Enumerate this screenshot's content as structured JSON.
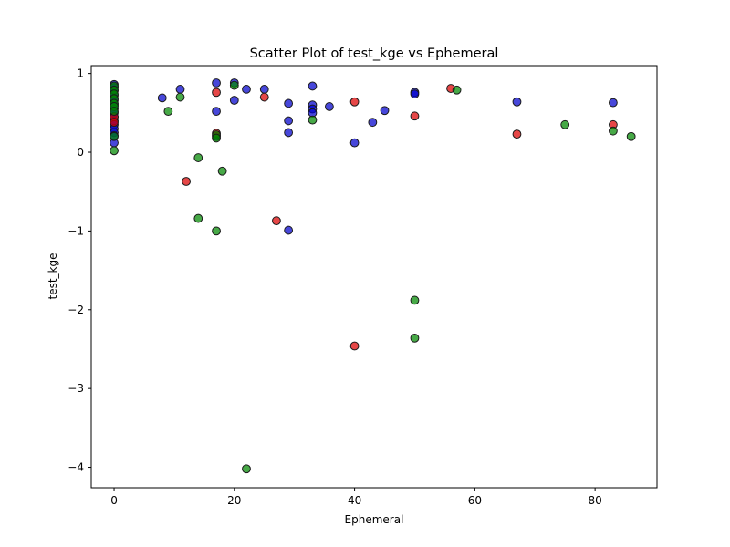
{
  "chart_data": {
    "type": "scatter",
    "title": "Scatter Plot of test_kge vs Ephemeral",
    "xlabel": "Ephemeral",
    "ylabel": "test_kge",
    "xlim": [
      -3.8,
      90.3
    ],
    "ylim": [
      -4.26,
      1.1
    ],
    "xticks": [
      0,
      20,
      40,
      60,
      80
    ],
    "yticks": [
      1,
      0,
      -1,
      -2,
      -3,
      -4
    ],
    "grid": false,
    "series": [
      {
        "color": "#0000cc",
        "points": [
          [
            0,
            0.86
          ],
          [
            0,
            0.82
          ],
          [
            0,
            0.78
          ],
          [
            0,
            0.72
          ],
          [
            0,
            0.66
          ],
          [
            0,
            0.6
          ],
          [
            0,
            0.55
          ],
          [
            0,
            0.5
          ],
          [
            0,
            0.45
          ],
          [
            0,
            0.4
          ],
          [
            0,
            0.35
          ],
          [
            0,
            0.3
          ],
          [
            0,
            0.25
          ],
          [
            0,
            0.21
          ],
          [
            0,
            0.12
          ],
          [
            8,
            0.69
          ],
          [
            11,
            0.8
          ],
          [
            17,
            0.88
          ],
          [
            17,
            0.52
          ],
          [
            17,
            0.2
          ],
          [
            20,
            0.88
          ],
          [
            20,
            0.66
          ],
          [
            22,
            0.8
          ],
          [
            25,
            0.8
          ],
          [
            29,
            0.62
          ],
          [
            29,
            0.4
          ],
          [
            29,
            0.25
          ],
          [
            29,
            -0.99
          ],
          [
            33,
            0.84
          ],
          [
            33,
            0.6
          ],
          [
            33,
            0.55
          ],
          [
            33,
            0.5
          ],
          [
            35.8,
            0.58
          ],
          [
            40,
            0.12
          ],
          [
            43,
            0.38
          ],
          [
            45,
            0.53
          ],
          [
            50,
            0.76
          ],
          [
            50,
            0.74
          ],
          [
            67,
            0.64
          ],
          [
            83,
            0.63
          ]
        ]
      },
      {
        "color": "#dd0000",
        "points": [
          [
            0,
            0.45
          ],
          [
            0,
            0.38
          ],
          [
            12,
            -0.37
          ],
          [
            17,
            0.76
          ],
          [
            17,
            0.24
          ],
          [
            25,
            0.7
          ],
          [
            27,
            -0.87
          ],
          [
            40,
            0.64
          ],
          [
            40,
            -2.46
          ],
          [
            50,
            0.46
          ],
          [
            56,
            0.81
          ],
          [
            67,
            0.23
          ],
          [
            83,
            0.35
          ]
        ]
      },
      {
        "color": "#008800",
        "points": [
          [
            0,
            0.84
          ],
          [
            0,
            0.79
          ],
          [
            0,
            0.74
          ],
          [
            0,
            0.68
          ],
          [
            0,
            0.62
          ],
          [
            0,
            0.58
          ],
          [
            0,
            0.52
          ],
          [
            0,
            0.2
          ],
          [
            0,
            0.02
          ],
          [
            9,
            0.52
          ],
          [
            11,
            0.7
          ],
          [
            14,
            -0.07
          ],
          [
            14,
            -0.84
          ],
          [
            17,
            0.22
          ],
          [
            17,
            0.18
          ],
          [
            17,
            -1.0
          ],
          [
            18,
            -0.24
          ],
          [
            20,
            0.85
          ],
          [
            22,
            -4.02
          ],
          [
            33,
            0.41
          ],
          [
            50,
            -1.88
          ],
          [
            50,
            -2.36
          ],
          [
            57,
            0.79
          ],
          [
            75,
            0.35
          ],
          [
            83,
            0.27
          ],
          [
            86,
            0.2
          ]
        ]
      }
    ]
  }
}
